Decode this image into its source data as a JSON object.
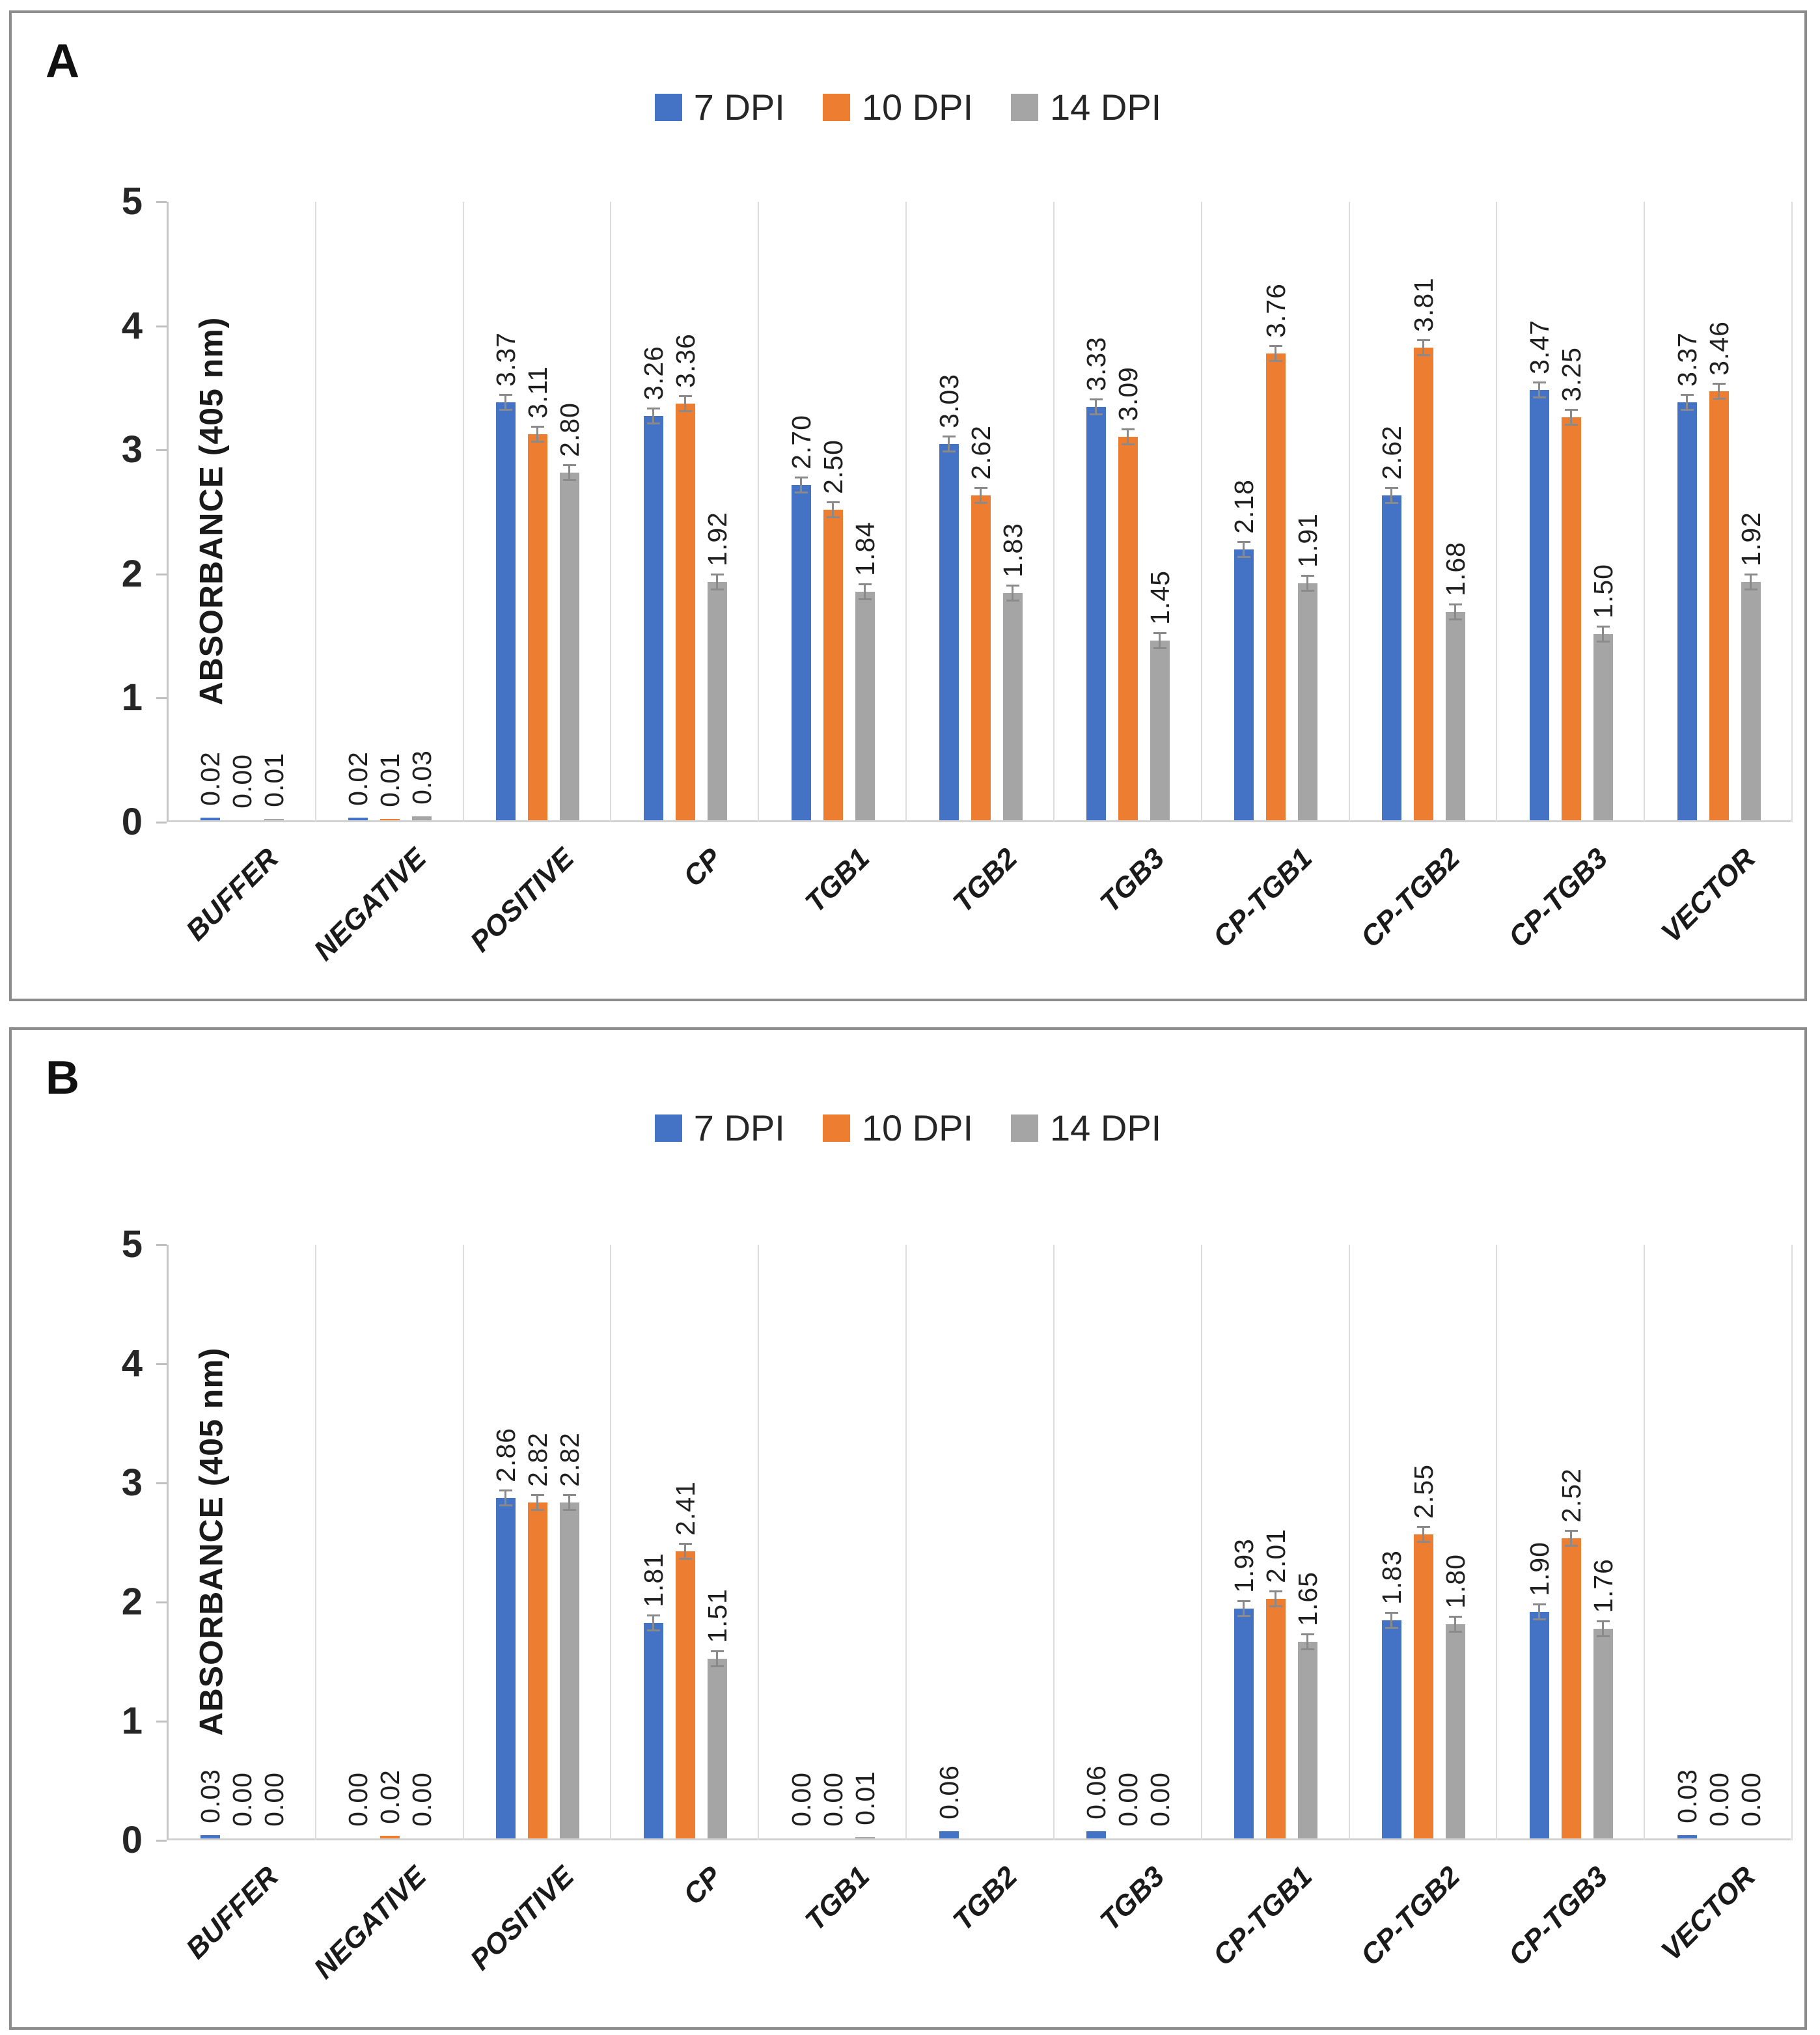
{
  "figure": {
    "panels": [
      {
        "label": "A",
        "y_axis": {
          "title": "ABSORBANCE (405 nm)",
          "ticks": [
            "0",
            "1",
            "2",
            "3",
            "4",
            "5"
          ],
          "max": 5
        },
        "legend": [
          {
            "label": "7 DPI",
            "color": "#4472C4"
          },
          {
            "label": "10 DPI",
            "color": "#ED7D31"
          },
          {
            "label": "14 DPI",
            "color": "#A5A5A5"
          }
        ],
        "chart_data": {
          "type": "bar",
          "title": "",
          "xlabel": "",
          "ylabel": "ABSORBANCE (405 nm)",
          "ylim": [
            0,
            5
          ],
          "grid": "vertical-category-separators",
          "legend_position": "top-center",
          "error_bars": true,
          "categories": [
            "BUFFER",
            "NEGATIVE",
            "POSITIVE",
            "CP",
            "TGB1",
            "TGB2",
            "TGB3",
            "CP-TGB1",
            "CP-TGB2",
            "CP-TGB3",
            "VECTOR"
          ],
          "series": [
            {
              "name": "7 DPI",
              "color": "#4472C4",
              "values": [
                0.02,
                0.02,
                3.37,
                3.26,
                2.7,
                3.03,
                3.33,
                2.18,
                2.62,
                3.47,
                3.37
              ]
            },
            {
              "name": "10 DPI",
              "color": "#ED7D31",
              "values": [
                0.0,
                0.01,
                3.11,
                3.36,
                2.5,
                2.62,
                3.09,
                3.76,
                3.81,
                3.25,
                3.46
              ]
            },
            {
              "name": "14 DPI",
              "color": "#A5A5A5",
              "values": [
                0.01,
                0.03,
                2.8,
                1.92,
                1.84,
                1.83,
                1.45,
                1.91,
                1.68,
                1.5,
                1.92
              ]
            }
          ]
        }
      },
      {
        "label": "B",
        "y_axis": {
          "title": "ABSORBANCE (405 nm)",
          "ticks": [
            "0",
            "1",
            "2",
            "3",
            "4",
            "5"
          ],
          "max": 5
        },
        "legend": [
          {
            "label": "7 DPI",
            "color": "#4472C4"
          },
          {
            "label": "10 DPI",
            "color": "#ED7D31"
          },
          {
            "label": "14 DPI",
            "color": "#A5A5A5"
          }
        ],
        "chart_data": {
          "type": "bar",
          "title": "",
          "xlabel": "",
          "ylabel": "ABSORBANCE (405 nm)",
          "ylim": [
            0,
            5
          ],
          "grid": "vertical-category-separators",
          "legend_position": "top-center",
          "error_bars": true,
          "categories": [
            "BUFFER",
            "NEGATIVE",
            "POSITIVE",
            "CP",
            "TGB1",
            "TGB2",
            "TGB3",
            "CP-TGB1",
            "CP-TGB2",
            "CP-TGB3",
            "VECTOR"
          ],
          "series": [
            {
              "name": "7 DPI",
              "color": "#4472C4",
              "values": [
                0.03,
                0.0,
                2.86,
                1.81,
                0.0,
                0.06,
                0.06,
                1.93,
                1.83,
                1.9,
                0.03
              ]
            },
            {
              "name": "10 DPI",
              "color": "#ED7D31",
              "values": [
                0.0,
                0.02,
                2.82,
                2.41,
                0.0,
                null,
                0.0,
                2.01,
                2.55,
                2.52,
                0.0
              ]
            },
            {
              "name": "14 DPI",
              "color": "#A5A5A5",
              "values": [
                0.0,
                0.0,
                2.82,
                1.51,
                0.01,
                null,
                0.0,
                1.65,
                1.8,
                1.76,
                0.0
              ]
            }
          ]
        }
      }
    ],
    "colors": {
      "series_blue": "#4472C4",
      "series_orange": "#ED7D31",
      "series_gray": "#A5A5A5",
      "gridline": "#DCDCDC",
      "axis_line": "#C6C6C6",
      "error_bar": "#8A8A8A",
      "panel_border": "#8C8C8C"
    }
  }
}
